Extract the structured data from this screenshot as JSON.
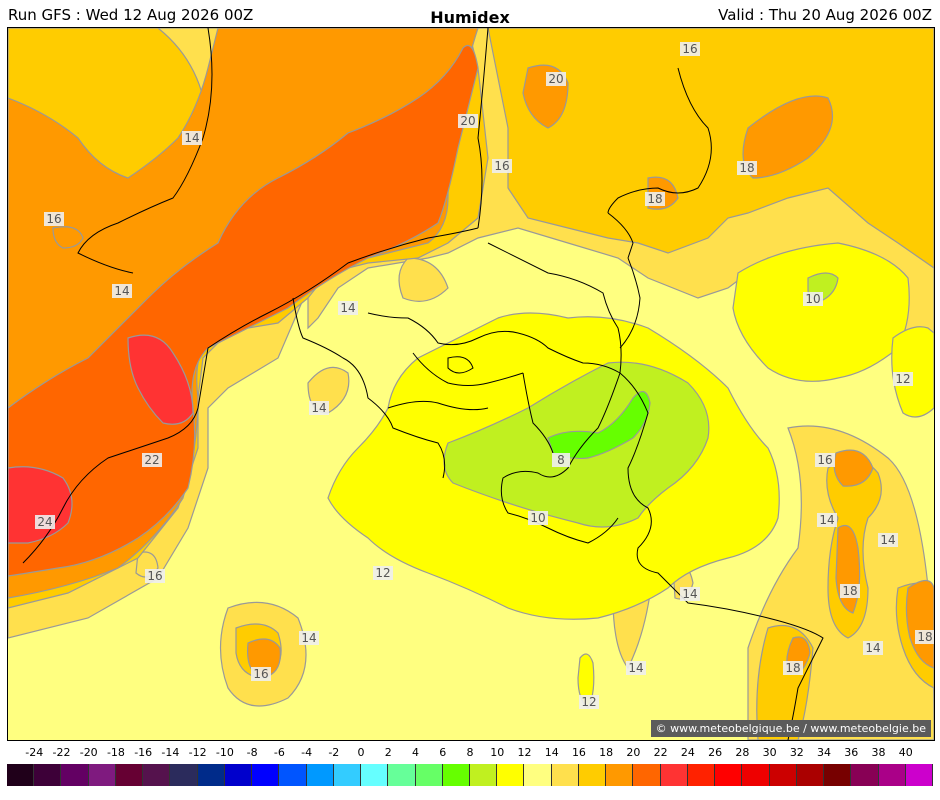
{
  "header": {
    "run_label": "Run GFS : Wed 12 Aug 2026 00Z",
    "title": "Humidex",
    "valid_label": "Valid : Thu 20 Aug 2026 00Z"
  },
  "copyright": "© www.meteobelgique.be / www.meteobelgie.be",
  "contour_labels": [
    "20",
    "16",
    "20",
    "18",
    "18",
    "14",
    "16",
    "16",
    "14",
    "10",
    "14",
    "14",
    "12",
    "22",
    "8",
    "16",
    "24",
    "10",
    "14",
    "14",
    "12",
    "16",
    "14",
    "18",
    "14",
    "16",
    "14",
    "18",
    "14",
    "18",
    "12"
  ],
  "scale": {
    "ticks": [
      "-24",
      "-22",
      "-20",
      "-18",
      "-16",
      "-14",
      "-12",
      "-10",
      "-8",
      "-6",
      "-4",
      "-2",
      "0",
      "2",
      "4",
      "6",
      "8",
      "10",
      "12",
      "14",
      "16",
      "18",
      "20",
      "22",
      "24",
      "26",
      "28",
      "30",
      "32",
      "34",
      "36",
      "38",
      "40"
    ],
    "colors": [
      "#20001a",
      "#3d0038",
      "#630063",
      "#7f1a7f",
      "#660033",
      "#55124d",
      "#2b2b5c",
      "#002b8a",
      "#0000cc",
      "#0000ff",
      "#0055ff",
      "#0099ff",
      "#33ccff",
      "#66ffff",
      "#66ff99",
      "#66ff66",
      "#66ff00",
      "#c0f020",
      "#ffff00",
      "#ffff80",
      "#ffe04d",
      "#ffcc00",
      "#ff9900",
      "#ff6600",
      "#ff3333",
      "#ff2200",
      "#ff0000",
      "#ee0000",
      "#cc0000",
      "#aa0000",
      "#770000",
      "#880055",
      "#aa0088",
      "#cc00cc"
    ]
  },
  "map_colors": {
    "c10": "#c0f020",
    "c12": "#ffff00",
    "c14": "#ffff80",
    "c16": "#ffe04d",
    "c18": "#ffcc00",
    "c20": "#ff9900",
    "c22": "#ff6600",
    "c24": "#ff3333",
    "c8": "#66ff00",
    "contour": "#999999",
    "border": "#000000"
  }
}
